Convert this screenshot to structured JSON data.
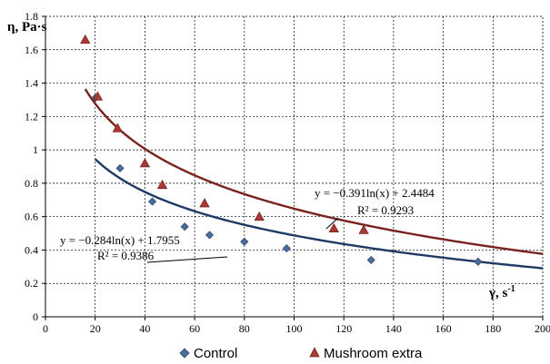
{
  "chart_data": {
    "type": "scatter",
    "ylabel": "η, Pa·s",
    "xlabel_main": "γ, s",
    "xlabel_sup": "-1",
    "xlim": [
      0,
      200
    ],
    "ylim": [
      0,
      1.8
    ],
    "xticks": [
      0,
      20,
      40,
      60,
      80,
      100,
      120,
      140,
      160,
      180,
      200
    ],
    "yticks": [
      0,
      0.2,
      0.4,
      0.6,
      0.8,
      1,
      1.2,
      1.4,
      1.6,
      1.8
    ],
    "xtick_labels": [
      "0",
      "20",
      "40",
      "60",
      "80",
      "100",
      "120",
      "140",
      "160",
      "180",
      "200"
    ],
    "ytick_labels": [
      "0",
      "0.2",
      "0.4",
      "0.6",
      "0.8",
      "1",
      "1.2",
      "1.4",
      "1.6",
      "1.8"
    ],
    "grid": true,
    "legend_position": "bottom",
    "series": [
      {
        "name": "Control",
        "marker": "diamond",
        "color": "#4a6d9c",
        "trend_color": "#1f3a66",
        "x": [
          20,
          30,
          43,
          56,
          66,
          80,
          97,
          131,
          174
        ],
        "y": [
          1.31,
          0.89,
          0.69,
          0.54,
          0.49,
          0.45,
          0.41,
          0.34,
          0.33
        ],
        "trendline": {
          "a": -0.284,
          "b": 1.7955,
          "x_start": 20,
          "x_end": 200
        },
        "equation": "y = −0.284ln(x) + 1.7955",
        "r2": "R² = 0.9386"
      },
      {
        "name": "Mushroom extra",
        "marker": "triangle",
        "color": "#a83a33",
        "trend_color": "#7a2220",
        "x": [
          16,
          21,
          29,
          40,
          47,
          64,
          86,
          116,
          128
        ],
        "y": [
          1.66,
          1.32,
          1.13,
          0.92,
          0.79,
          0.68,
          0.6,
          0.53,
          0.52
        ],
        "trendline": {
          "a": -0.391,
          "b": 2.4484,
          "x_start": 16,
          "x_end": 200
        },
        "equation": "y = −0.391ln(x) + 2.4484",
        "r2": "R² = 0.9293"
      }
    ]
  }
}
